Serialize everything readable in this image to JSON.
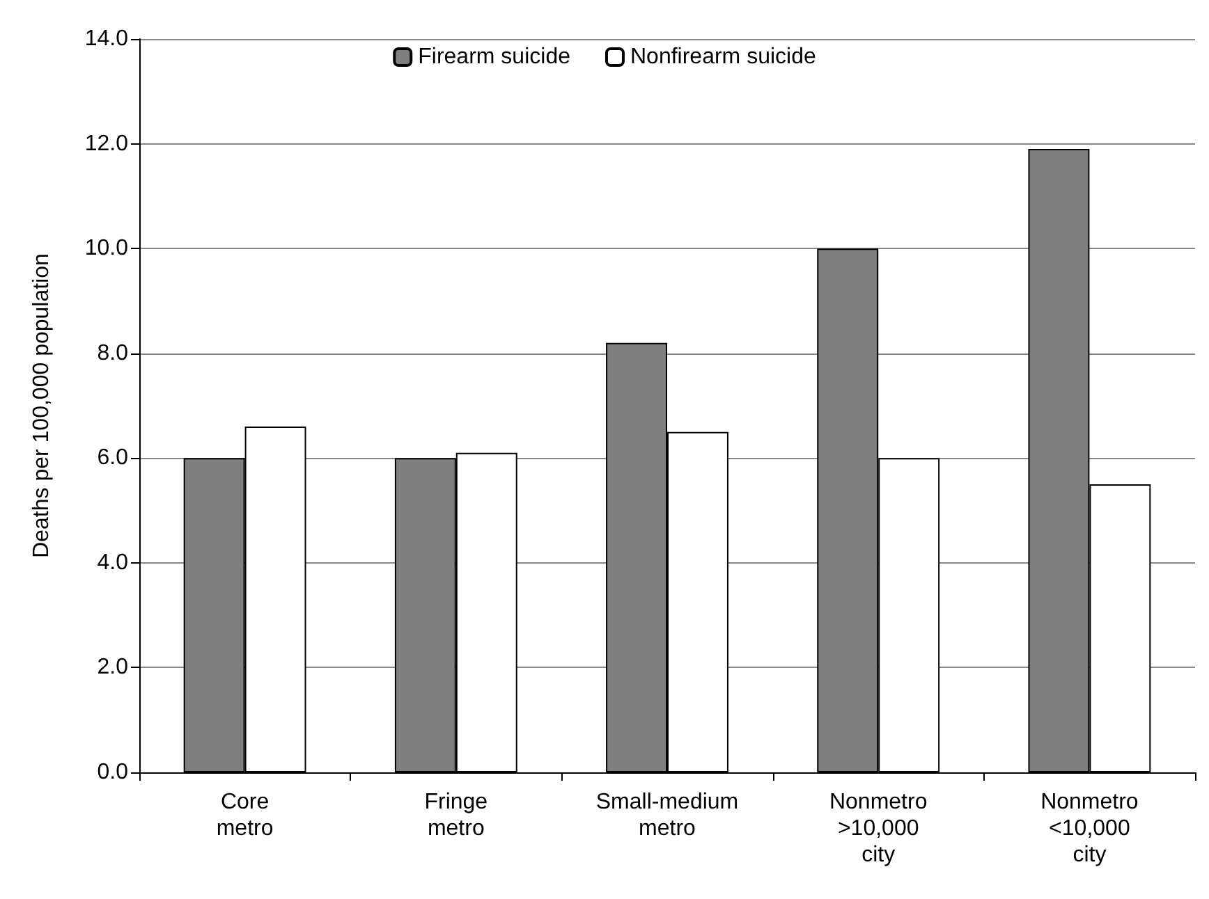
{
  "chart_data": {
    "type": "bar",
    "ylabel": "Deaths per 100,000 population",
    "categories": [
      "Core\nmetro",
      "Fringe\nmetro",
      "Small-medium\nmetro",
      "Nonmetro\n>10,000\ncity",
      "Nonmetro\n<10,000\ncity"
    ],
    "series": [
      {
        "name": "Firearm suicide",
        "color": "#7f7f7f",
        "values": [
          6.0,
          6.0,
          8.2,
          10.0,
          11.9
        ]
      },
      {
        "name": "Nonfirearm suicide",
        "color": "#ffffff",
        "values": [
          6.6,
          6.1,
          6.5,
          6.0,
          5.5
        ]
      }
    ],
    "ylim": [
      0,
      14
    ],
    "yticks": [
      {
        "value": 0,
        "label": "0.0"
      },
      {
        "value": 2,
        "label": "2.0"
      },
      {
        "value": 4,
        "label": "4.0"
      },
      {
        "value": 6,
        "label": "6.0"
      },
      {
        "value": 8,
        "label": "8.0"
      },
      {
        "value": 10,
        "label": "10.0"
      },
      {
        "value": 12,
        "label": "12.0"
      },
      {
        "value": 14,
        "label": "14.0"
      }
    ],
    "grid": "y",
    "legend": "top"
  }
}
